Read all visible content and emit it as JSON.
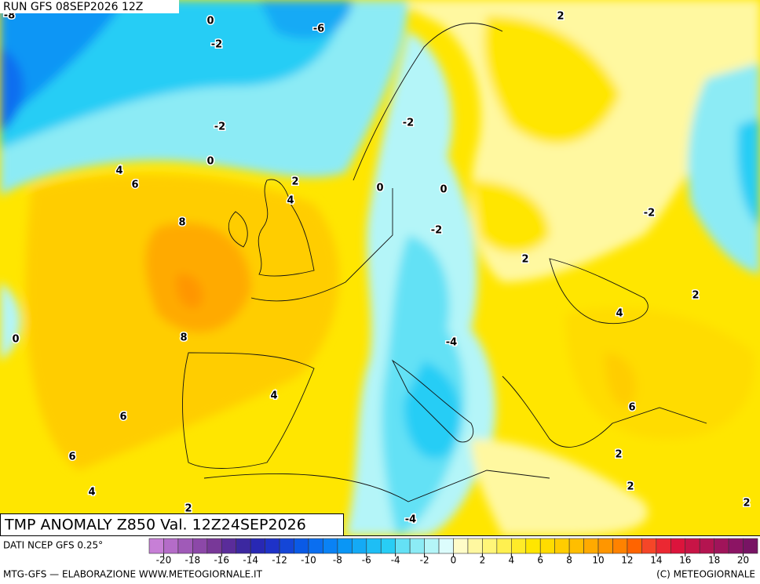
{
  "header": {
    "run": "RUN GFS 08SEP2026 12Z"
  },
  "map": {
    "title": "TMP ANOMALY Z850 Val. 12Z24SEP2026",
    "contour_labels": [
      -8,
      0,
      -6,
      -2,
      2,
      -2,
      -2,
      0,
      4,
      6,
      2,
      4,
      0,
      0,
      -2,
      -2,
      8,
      2,
      2,
      4,
      0,
      8,
      -4,
      4,
      6,
      6,
      6,
      2,
      4,
      2,
      2,
      2,
      -4
    ]
  },
  "legend": {
    "source": "DATI NCEP GFS 0.25°",
    "colors": [
      "#c77fd6",
      "#b46cc8",
      "#a05ab8",
      "#8c48a8",
      "#783898",
      "#5a2c9a",
      "#3c28a0",
      "#2828b4",
      "#1e32c8",
      "#1446d7",
      "#0a5ae6",
      "#0a6ef0",
      "#0a82f5",
      "#0a96f5",
      "#14aaf5",
      "#1ebef5",
      "#28cdf5",
      "#64e1f5",
      "#8cebf5",
      "#b4f5f8",
      "#dcfcfc",
      "#fffcc8",
      "#fff8a0",
      "#fff578",
      "#fff050",
      "#ffeb28",
      "#ffe600",
      "#ffdc00",
      "#ffcd00",
      "#ffbe00",
      "#ffaa00",
      "#ff9600",
      "#ff8200",
      "#ff6400",
      "#f54628",
      "#eb2832",
      "#dc143c",
      "#c81446",
      "#b41450",
      "#a0145a",
      "#8c1464",
      "#781464"
    ],
    "ticks": [
      -20,
      -18,
      -16,
      -14,
      -12,
      -10,
      -8,
      -6,
      -4,
      -2,
      0,
      2,
      4,
      6,
      8,
      10,
      12,
      14,
      16,
      18,
      20
    ]
  },
  "footer": {
    "left": "MTG-GFS — ELABORAZIONE WWW.METEOGIORNALE.IT",
    "right": "(C) METEOGIORNALE"
  }
}
